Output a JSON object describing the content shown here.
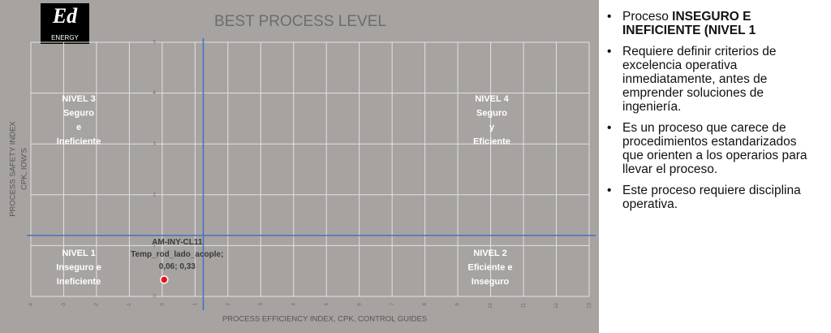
{
  "chart_data": {
    "type": "scatter",
    "title": "BEST PROCESS LEVEL",
    "logo": {
      "mark": "Ed",
      "text": "ENERGY"
    },
    "x_label": "PROCESS EFFICIENCY INDEX, CPK, CONTROL GUIDES",
    "y_label": [
      "PROCESS SAFETY INDEX",
      "CPK, IOW'S"
    ],
    "xlim": [
      -4,
      13
    ],
    "ylim": [
      0,
      5
    ],
    "xticks": [
      -4,
      -3,
      -2,
      -1,
      0,
      1,
      2,
      3,
      4,
      5,
      6,
      7,
      8,
      9,
      10,
      11,
      12,
      13
    ],
    "yticks": [
      0,
      1,
      2,
      3,
      4,
      5
    ],
    "grid": true,
    "threshold_x": 1.25,
    "threshold_y": 1.2,
    "threshold_color": "#4472c4",
    "series": [
      {
        "name": "AM-INY-CL11",
        "color": "#e8141b",
        "x": [
          0.06
        ],
        "values": [
          0.33
        ],
        "point_label_lines": [
          "AM-INY-CL11",
          "Temp_rod_lado_acople;"
        ],
        "value_labels": [
          "0,06; 0,33"
        ]
      }
    ],
    "quadrants": [
      {
        "lines": [
          "NIVEL 3",
          "Seguro",
          "e",
          "Ineficiente"
        ]
      },
      {
        "lines": [
          "NIVEL 4",
          "Seguro",
          "y",
          "Eficiente"
        ]
      },
      {
        "lines": [
          "NIVEL 1",
          "Inseguro e",
          "Ineficiente"
        ]
      },
      {
        "lines": [
          "NIVEL 2",
          "Eficiente e",
          "Inseguro"
        ]
      }
    ]
  },
  "notes": {
    "bullets": [
      [
        "Proceso ",
        "INSEGURO E INEFICIENTE (NIVEL 1"
      ],
      [
        "Requiere definir criterios de excelencia operativa inmediatamente, antes de emprender soluciones de ingeniería."
      ],
      [
        "Es un proceso que carece de procedimientos estandarizados que orienten a los operarios para llevar el proceso."
      ],
      [
        "Este proceso requiere disciplina operativa."
      ]
    ]
  }
}
